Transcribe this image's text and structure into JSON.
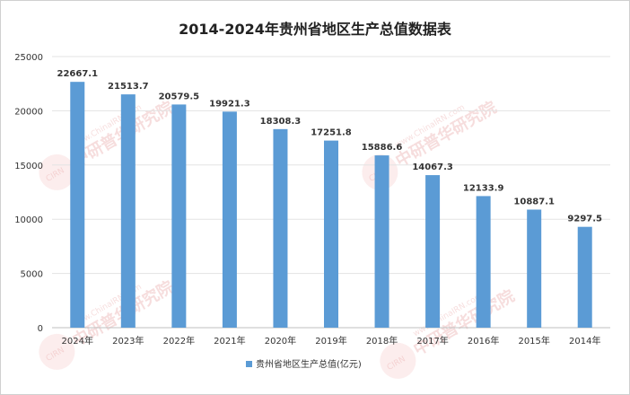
{
  "chart_data": {
    "type": "bar",
    "title": "2014-2024年贵州省地区生产总值数据表",
    "categories": [
      "2024年",
      "2023年",
      "2022年",
      "2021年",
      "2020年",
      "2019年",
      "2018年",
      "2017年",
      "2016年",
      "2015年",
      "2014年"
    ],
    "series": [
      {
        "name": "贵州省地区生产总值(亿元)",
        "values": [
          22667.1,
          21513.7,
          20579.5,
          19921.3,
          18308.3,
          17251.8,
          15886.6,
          14067.3,
          12133.9,
          10887.1,
          9297.5
        ],
        "labels": [
          "22667.1",
          "21513.7",
          "20579.5",
          "19921.3",
          "18308.3",
          "17251.8",
          "15886.6",
          "14067.3",
          "12133.9",
          "10887.1",
          "9297.5"
        ],
        "color": "#5b9bd5"
      }
    ],
    "ylim": [
      0,
      25000
    ],
    "yticks": [
      "0",
      "5000",
      "10000",
      "15000",
      "20000",
      "25000"
    ],
    "grid": true,
    "legend": "bottom"
  },
  "watermark": {
    "brand": "中研普华研究院",
    "site": "www.ChinaIRN.com",
    "logo": "CIRN"
  }
}
